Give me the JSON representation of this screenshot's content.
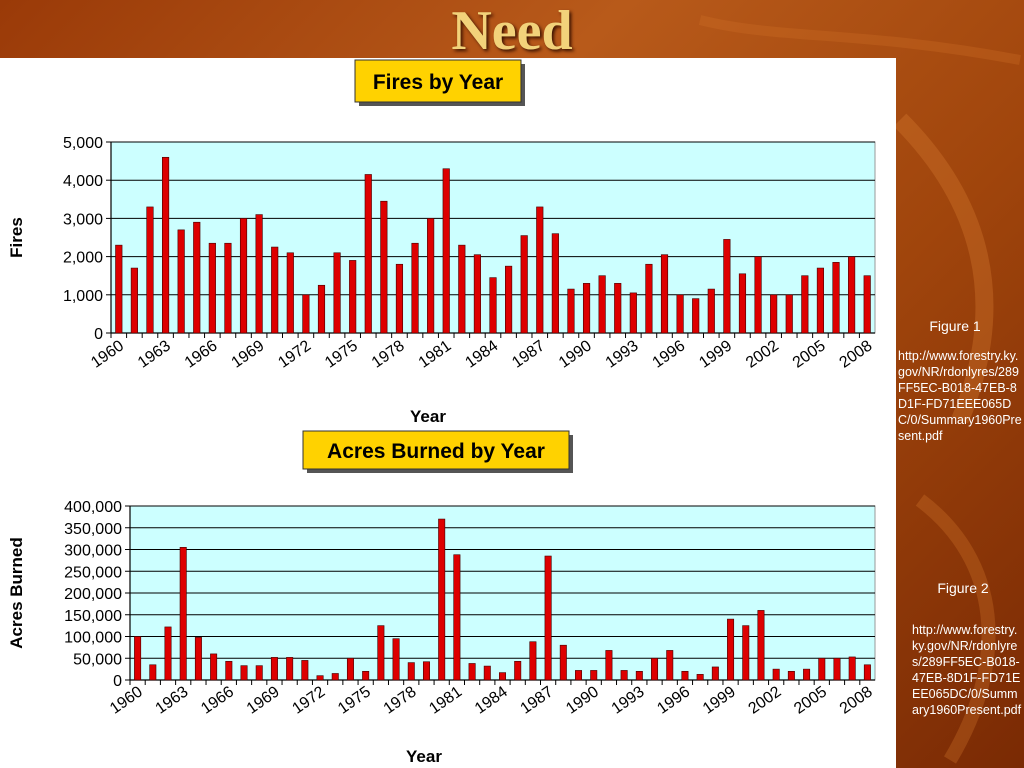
{
  "slide": {
    "title": "Need"
  },
  "side": {
    "caption1": "Figure 1",
    "url1": "http://www.forestry.ky.gov/NR/rdonlyres/289FF5EC-B018-47EB-8D1F-FD71EEE065DC/0/Summary1960Present.pdf",
    "caption2": "Figure 2",
    "url2": "http://www.forestry.ky.gov/NR/rdonlyres/289FF5EC-B018-47EB-8D1F-FD71EEE065DC/0/Summary1960Present.pdf"
  },
  "colors": {
    "bar": "#dd0000",
    "plot_bg": "#ccffff",
    "title_box": "#ffd200"
  },
  "chart_data": [
    {
      "type": "bar",
      "title": "Fires by Year",
      "xlabel": "Year",
      "ylabel": "Fires",
      "ylim": [
        0,
        5000
      ],
      "yticks": [
        0,
        1000,
        2000,
        3000,
        4000,
        5000
      ],
      "ytick_labels": [
        "0",
        "1,000",
        "2,000",
        "3,000",
        "4,000",
        "5,000"
      ],
      "xtick_labels": [
        "1960",
        "1963",
        "1966",
        "1969",
        "1972",
        "1975",
        "1978",
        "1981",
        "1984",
        "1987",
        "1990",
        "1993",
        "1996",
        "1999",
        "2002",
        "2005",
        "2008"
      ],
      "grid": true,
      "categories": [
        1960,
        1961,
        1962,
        1963,
        1964,
        1965,
        1966,
        1967,
        1968,
        1969,
        1970,
        1971,
        1972,
        1973,
        1974,
        1975,
        1976,
        1977,
        1978,
        1979,
        1980,
        1981,
        1982,
        1983,
        1984,
        1985,
        1986,
        1987,
        1988,
        1989,
        1990,
        1991,
        1992,
        1993,
        1994,
        1995,
        1996,
        1997,
        1998,
        1999,
        2000,
        2001,
        2002,
        2003,
        2004,
        2005,
        2006,
        2007,
        2008
      ],
      "values": [
        2300,
        1700,
        3300,
        4600,
        2700,
        2900,
        2350,
        2350,
        3000,
        3100,
        2250,
        2100,
        1000,
        1250,
        2100,
        1900,
        4150,
        3450,
        1800,
        2350,
        3000,
        4300,
        2300,
        2050,
        1450,
        1750,
        2550,
        3300,
        2600,
        1150,
        1300,
        1500,
        1300,
        1050,
        1800,
        2050,
        1000,
        900,
        1150,
        2450,
        1550,
        2000,
        1000,
        1000,
        1500,
        1700,
        1850,
        2000,
        1500
      ]
    },
    {
      "type": "bar",
      "title": "Acres Burned by Year",
      "xlabel": "Year",
      "ylabel": "Acres Burned",
      "ylim": [
        0,
        400000
      ],
      "yticks": [
        0,
        50000,
        100000,
        150000,
        200000,
        250000,
        300000,
        350000,
        400000
      ],
      "ytick_labels": [
        "0",
        "50,000",
        "100,000",
        "150,000",
        "200,000",
        "250,000",
        "300,000",
        "350,000",
        "400,000"
      ],
      "xtick_labels": [
        "1960",
        "1963",
        "1966",
        "1969",
        "1972",
        "1975",
        "1978",
        "1981",
        "1984",
        "1987",
        "1990",
        "1993",
        "1996",
        "1999",
        "2002",
        "2005",
        "2008"
      ],
      "grid": true,
      "categories": [
        1960,
        1961,
        1962,
        1963,
        1964,
        1965,
        1966,
        1967,
        1968,
        1969,
        1970,
        1971,
        1972,
        1973,
        1974,
        1975,
        1976,
        1977,
        1978,
        1979,
        1980,
        1981,
        1982,
        1983,
        1984,
        1985,
        1986,
        1987,
        1988,
        1989,
        1990,
        1991,
        1992,
        1993,
        1994,
        1995,
        1996,
        1997,
        1998,
        1999,
        2000,
        2001,
        2002,
        2003,
        2004,
        2005,
        2006,
        2007,
        2008
      ],
      "values": [
        100000,
        35000,
        122000,
        305000,
        98000,
        60000,
        43000,
        33000,
        33000,
        52000,
        52000,
        45000,
        10000,
        15000,
        50000,
        20000,
        125000,
        95000,
        40000,
        42000,
        370000,
        288000,
        38000,
        32000,
        17000,
        43000,
        88000,
        285000,
        80000,
        22000,
        22000,
        68000,
        22000,
        20000,
        50000,
        68000,
        20000,
        13000,
        30000,
        140000,
        125000,
        160000,
        25000,
        20000,
        25000,
        50000,
        50000,
        53000,
        35000
      ]
    }
  ]
}
